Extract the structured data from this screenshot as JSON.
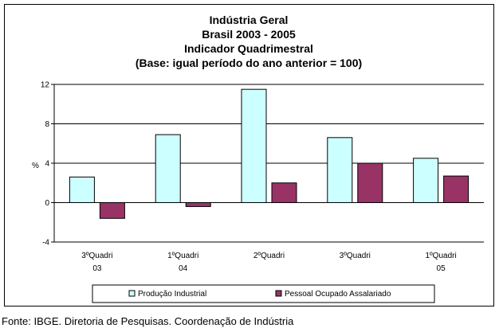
{
  "chart_data": {
    "type": "bar",
    "title": [
      "Indústria Geral",
      "Brasil 2003 - 2005",
      "Indicador Quadrimestral",
      "(Base: igual período do ano anterior = 100)"
    ],
    "ylabel": "%",
    "ylim": [
      -4,
      12
    ],
    "yticks": [
      -4,
      0,
      4,
      8,
      12
    ],
    "grid": true,
    "legend_position": "bottom",
    "categories": [
      [
        "3ºQuadri",
        "03"
      ],
      [
        "1ºQuadri",
        "04"
      ],
      [
        "2ºQuadri",
        ""
      ],
      [
        "3ºQuadri",
        ""
      ],
      [
        "1ºQuadri",
        "05"
      ]
    ],
    "series": [
      {
        "name": "Produção Industrial",
        "color": "#ccffff",
        "values": [
          2.6,
          6.9,
          11.5,
          6.6,
          4.5
        ]
      },
      {
        "name": "Pessoal Ocupado Assalariado",
        "color": "#993366",
        "values": [
          -1.6,
          -0.4,
          2.0,
          4.0,
          2.7
        ]
      }
    ]
  },
  "source": "Fonte: IBGE. Diretoria de Pesquisas. Coordenação de Indústria"
}
